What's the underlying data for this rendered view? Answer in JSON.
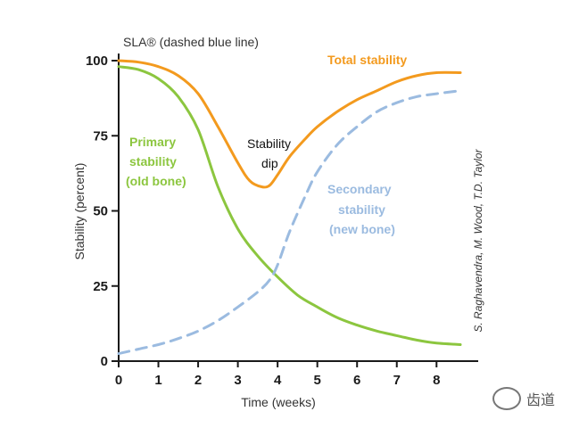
{
  "chart_data": {
    "type": "line",
    "title": "",
    "xlabel": "Time (weeks)",
    "ylabel": "Stability (percent)",
    "xlim": [
      0,
      8.6
    ],
    "ylim": [
      0,
      100
    ],
    "xticks": [
      0,
      1,
      2,
      3,
      4,
      5,
      6,
      7,
      8
    ],
    "yticks": [
      0,
      25,
      50,
      75,
      100
    ],
    "series": [
      {
        "name": "Total stability",
        "style": "solid",
        "color": "#f39a1e",
        "x": [
          0,
          0.5,
          1,
          1.5,
          2,
          2.5,
          3,
          3.3,
          3.6,
          3.8,
          4,
          4.3,
          4.7,
          5,
          5.5,
          6,
          6.5,
          7,
          7.5,
          8,
          8.6
        ],
        "y": [
          100,
          99.5,
          98,
          95,
          89,
          78,
          66,
          60,
          58,
          58.5,
          62,
          68,
          74,
          78,
          83,
          87,
          90,
          93,
          95,
          96,
          96
        ]
      },
      {
        "name": "Primary stability (old bone)",
        "style": "solid",
        "color": "#8cc63f",
        "x": [
          0,
          0.5,
          1,
          1.5,
          2,
          2.5,
          3,
          3.5,
          4,
          4.5,
          5,
          5.5,
          6,
          6.5,
          7,
          7.5,
          8,
          8.6
        ],
        "y": [
          98,
          97,
          94,
          88,
          77,
          58,
          44,
          35,
          28,
          22,
          18,
          14.5,
          12,
          10,
          8.5,
          7,
          6,
          5.5
        ]
      },
      {
        "name": "SLA®",
        "style": "dashed",
        "color": "#9bbbe0",
        "x": [
          0,
          0.5,
          1,
          1.5,
          2,
          2.5,
          3,
          3.5,
          3.8,
          4,
          4.3,
          4.7,
          5,
          5.5,
          6,
          6.5,
          7,
          7.5,
          8,
          8.6
        ],
        "y": [
          2.5,
          4,
          5.5,
          7.5,
          10,
          13.5,
          18,
          23,
          27,
          32,
          43,
          55,
          63,
          72,
          78,
          83,
          86,
          88,
          89,
          90
        ]
      }
    ],
    "annotations": {
      "sla": "SLA® (dashed blue line)",
      "total": "Total stability",
      "primary": [
        "Primary",
        "stability",
        "(old bone)"
      ],
      "dip": [
        "Stability",
        "dip"
      ],
      "secondary": [
        "Secondary",
        "stability",
        "(new bone)"
      ]
    },
    "credit": "S. Raghavendra, M. Wood, T.D. Taylor"
  },
  "watermark": "齿道"
}
